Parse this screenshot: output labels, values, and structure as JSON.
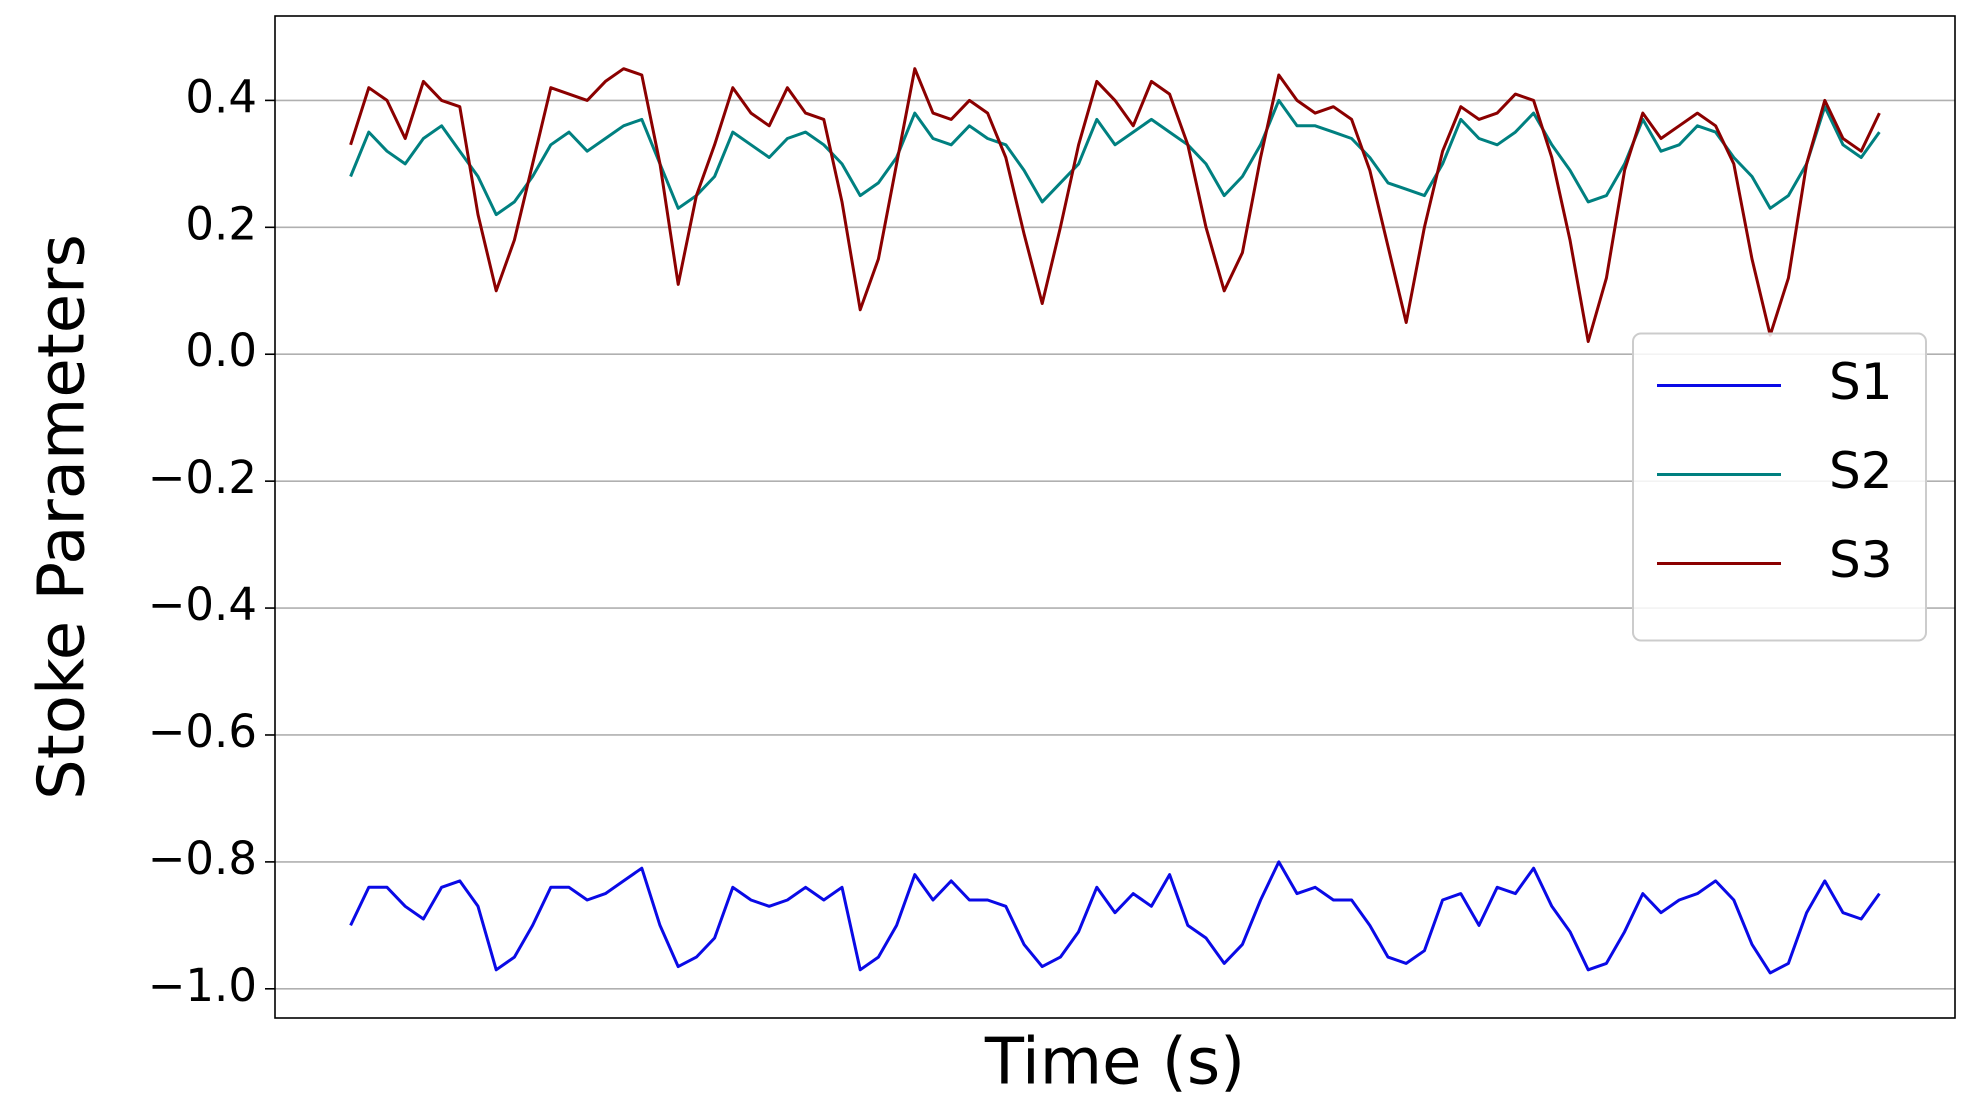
{
  "chart_data": {
    "type": "line",
    "xlabel": "Time (s)",
    "ylabel": "Stoke Parameters",
    "ylim": [
      -1.046,
      0.533
    ],
    "yticks": [
      {
        "value": -1.0,
        "label": "−1.0"
      },
      {
        "value": -0.8,
        "label": "−0.8"
      },
      {
        "value": -0.6,
        "label": "−0.6"
      },
      {
        "value": -0.4,
        "label": "−0.4"
      },
      {
        "value": -0.2,
        "label": "−0.2"
      },
      {
        "value": 0.0,
        "label": "0.0"
      },
      0.2,
      0.4
    ],
    "grid": true,
    "legend": "center right",
    "series": [
      {
        "name": "S1",
        "color": "#0a0ae6",
        "values": [
          -0.9,
          -0.84,
          -0.84,
          -0.87,
          -0.89,
          -0.84,
          -0.83,
          -0.87,
          -0.97,
          -0.95,
          -0.9,
          -0.84,
          -0.84,
          -0.86,
          -0.85,
          -0.83,
          -0.81,
          -0.9,
          -0.965,
          -0.95,
          -0.92,
          -0.84,
          -0.86,
          -0.87,
          -0.86,
          -0.84,
          -0.86,
          -0.84,
          -0.97,
          -0.95,
          -0.9,
          -0.82,
          -0.86,
          -0.83,
          -0.86,
          -0.86,
          -0.87,
          -0.93,
          -0.965,
          -0.95,
          -0.91,
          -0.84,
          -0.88,
          -0.85,
          -0.87,
          -0.82,
          -0.9,
          -0.92,
          -0.96,
          -0.93,
          -0.86,
          -0.8,
          -0.85,
          -0.84,
          -0.86,
          -0.86,
          -0.9,
          -0.95,
          -0.96,
          -0.94,
          -0.86,
          -0.85,
          -0.9,
          -0.84,
          -0.85,
          -0.81,
          -0.87,
          -0.91,
          -0.97,
          -0.96,
          -0.91,
          -0.85,
          -0.88,
          -0.86,
          -0.85,
          -0.83,
          -0.86,
          -0.93,
          -0.975,
          -0.96,
          -0.88,
          -0.83,
          -0.88,
          -0.89,
          -0.85
        ]
      },
      {
        "name": "S2",
        "color": "#008080",
        "values": [
          0.28,
          0.35,
          0.32,
          0.3,
          0.34,
          0.36,
          0.32,
          0.28,
          0.22,
          0.24,
          0.28,
          0.33,
          0.35,
          0.32,
          0.34,
          0.36,
          0.37,
          0.3,
          0.23,
          0.25,
          0.28,
          0.35,
          0.33,
          0.31,
          0.34,
          0.35,
          0.33,
          0.3,
          0.25,
          0.27,
          0.31,
          0.38,
          0.34,
          0.33,
          0.36,
          0.34,
          0.33,
          0.29,
          0.24,
          0.27,
          0.3,
          0.37,
          0.33,
          0.35,
          0.37,
          0.35,
          0.33,
          0.3,
          0.25,
          0.28,
          0.33,
          0.4,
          0.36,
          0.36,
          0.35,
          0.34,
          0.31,
          0.27,
          0.26,
          0.25,
          0.3,
          0.37,
          0.34,
          0.33,
          0.35,
          0.38,
          0.33,
          0.29,
          0.24,
          0.25,
          0.3,
          0.37,
          0.32,
          0.33,
          0.36,
          0.35,
          0.31,
          0.28,
          0.23,
          0.25,
          0.3,
          0.39,
          0.33,
          0.31,
          0.35
        ]
      },
      {
        "name": "S3",
        "color": "#8b0000",
        "values": [
          0.33,
          0.42,
          0.4,
          0.34,
          0.43,
          0.4,
          0.39,
          0.22,
          0.1,
          0.18,
          0.3,
          0.42,
          0.41,
          0.4,
          0.43,
          0.45,
          0.44,
          0.3,
          0.11,
          0.25,
          0.33,
          0.42,
          0.38,
          0.36,
          0.42,
          0.38,
          0.37,
          0.24,
          0.07,
          0.15,
          0.3,
          0.45,
          0.38,
          0.37,
          0.4,
          0.38,
          0.31,
          0.19,
          0.08,
          0.2,
          0.33,
          0.43,
          0.4,
          0.36,
          0.43,
          0.41,
          0.33,
          0.2,
          0.1,
          0.16,
          0.31,
          0.44,
          0.4,
          0.38,
          0.39,
          0.37,
          0.29,
          0.17,
          0.05,
          0.2,
          0.32,
          0.39,
          0.37,
          0.38,
          0.41,
          0.4,
          0.31,
          0.18,
          0.02,
          0.12,
          0.29,
          0.38,
          0.34,
          0.36,
          0.38,
          0.36,
          0.3,
          0.15,
          0.03,
          0.12,
          0.3,
          0.4,
          0.34,
          0.32,
          0.38
        ]
      }
    ]
  }
}
